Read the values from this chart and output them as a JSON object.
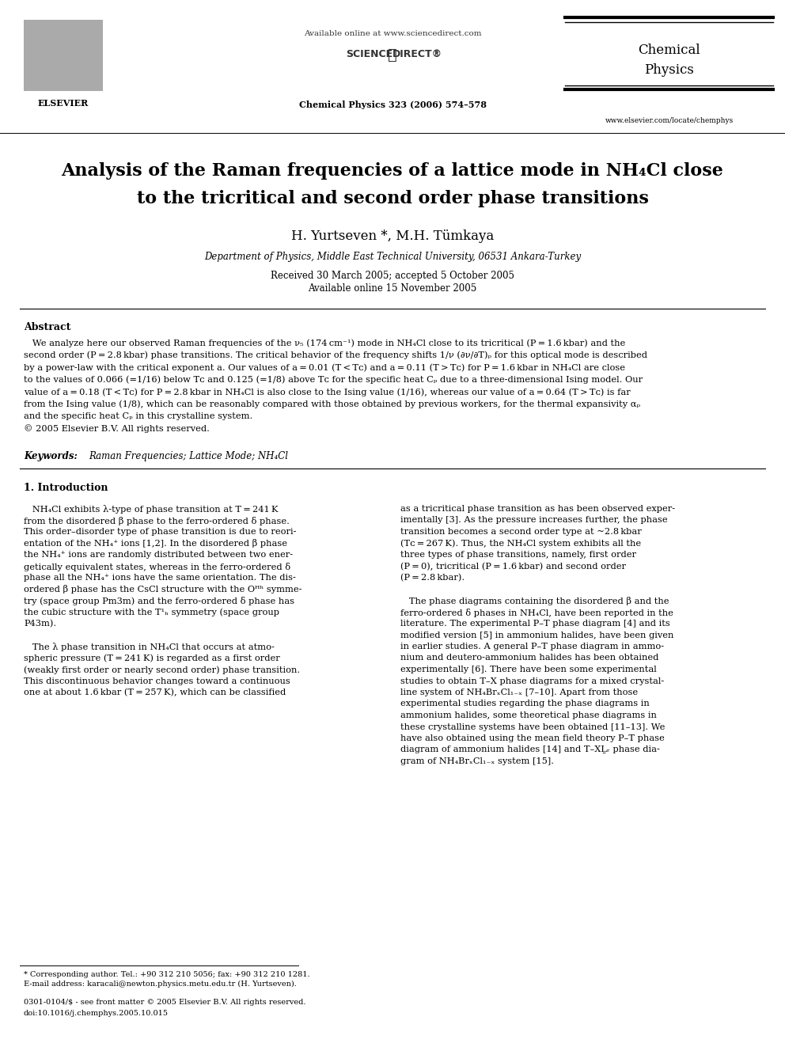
{
  "page_width": 9.92,
  "page_height": 13.23,
  "dpi": 100,
  "background_color": "#ffffff",
  "header": {
    "available_online": "Available online at www.sciencedirect.com",
    "sciencedirect": "SCIENCE      DIRECT®",
    "journal_name_line1": "Chemical",
    "journal_name_line2": "Physics",
    "journal_citation": "Chemical Physics 323 (2006) 574–578",
    "website": "www.elsevier.com/locate/chemphys"
  },
  "title_line1": "Analysis of the Raman frequencies of a lattice mode in NH₄Cl close",
  "title_line2": "to the tricritical and second order phase transitions",
  "authors": "H. Yurtseven *, M.H. Tümkaya",
  "affiliation": "Department of Physics, Middle East Technical University, 06531 Ankara-Turkey",
  "received": "Received 30 March 2005; accepted 5 October 2005",
  "available_online_date": "Available online 15 November 2005",
  "abstract_label": "Abstract",
  "keywords_label": "Keywords:",
  "keywords_text": "Raman Frequencies; Lattice Mode; NH₄Cl",
  "section1_title": "1. Introduction",
  "footnote_star": "* Corresponding author. Tel.: +90 312 210 5056; fax: +90 312 210 1281.",
  "footnote_email": "E-mail address: karacali@newton.physics.metu.edu.tr (H. Yurtseven).",
  "bottom_line1": "0301-0104/$ - see front matter © 2005 Elsevier B.V. All rights reserved.",
  "bottom_line2": "doi:10.1016/j.chemphys.2005.10.015"
}
